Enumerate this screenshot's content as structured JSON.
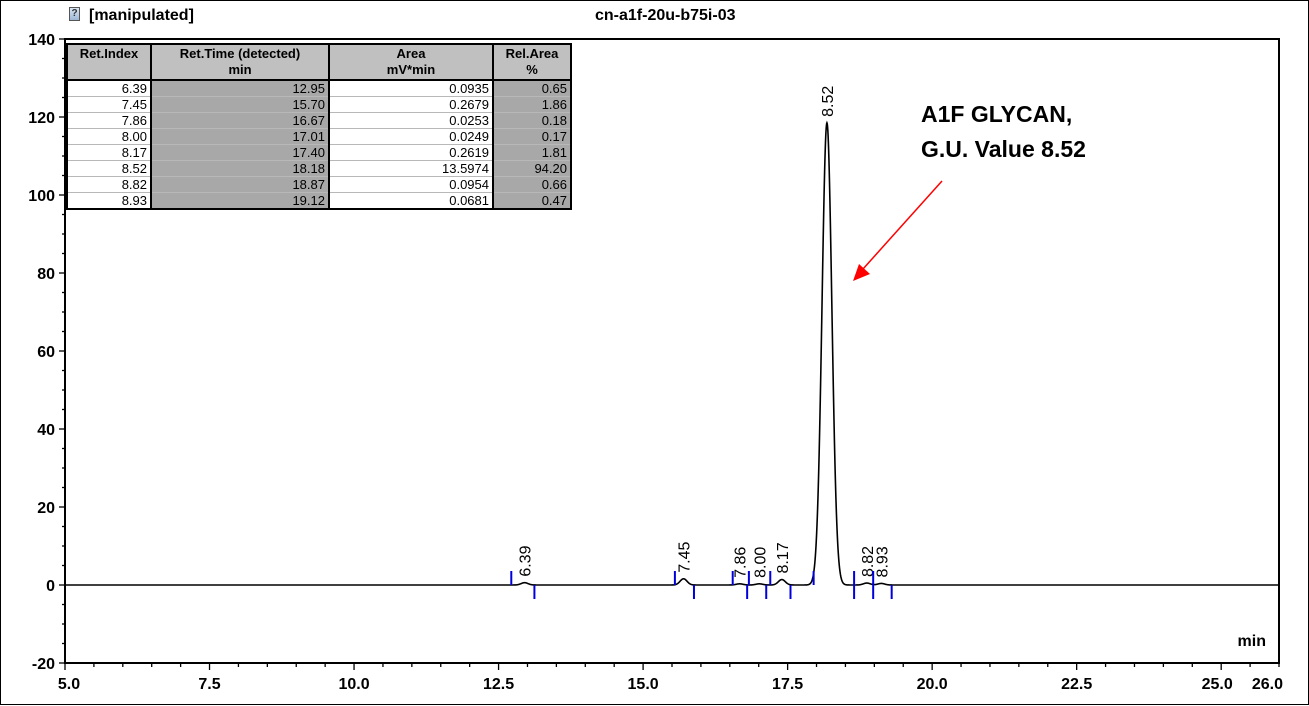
{
  "header": {
    "title": "[manipulated]",
    "sample_name": "cn-a1f-20u-b75i-03",
    "icon": "document-icon"
  },
  "annotation": {
    "line1": "A1F GLYCAN,",
    "line2": "G.U. Value 8.52",
    "arrow_color": "#ff0000"
  },
  "table": {
    "columns": [
      {
        "label": "Ret.Index",
        "unit": ""
      },
      {
        "label": "Ret.Time (detected)",
        "unit": "min"
      },
      {
        "label": "Area",
        "unit": "mV*min"
      },
      {
        "label": "Rel.Area",
        "unit": "%"
      }
    ],
    "rows": [
      [
        "6.39",
        "12.95",
        "0.0935",
        "0.65"
      ],
      [
        "7.45",
        "15.70",
        "0.2679",
        "1.86"
      ],
      [
        "7.86",
        "16.67",
        "0.0253",
        "0.18"
      ],
      [
        "8.00",
        "17.01",
        "0.0249",
        "0.17"
      ],
      [
        "8.17",
        "17.40",
        "0.2619",
        "1.81"
      ],
      [
        "8.52",
        "18.18",
        "13.5974",
        "94.20"
      ],
      [
        "8.82",
        "18.87",
        "0.0954",
        "0.66"
      ],
      [
        "8.93",
        "19.12",
        "0.0681",
        "0.47"
      ]
    ]
  },
  "chart_data": {
    "type": "line",
    "title": "cn-a1f-20u-b75i-03",
    "xlabel": "min",
    "ylabel": "",
    "xlim": [
      5.0,
      26.0
    ],
    "ylim": [
      -20,
      140
    ],
    "xticks": [
      "5.0",
      "7.5",
      "10.0",
      "12.5",
      "15.0",
      "17.5",
      "20.0",
      "22.5",
      "25.0",
      "26.0"
    ],
    "xtick_values": [
      5.0,
      7.5,
      10.0,
      12.5,
      15.0,
      17.5,
      20.0,
      22.5,
      25.0,
      26.0
    ],
    "yticks": [
      "-20",
      "0",
      "20",
      "40",
      "60",
      "80",
      "100",
      "120",
      "140"
    ],
    "ytick_values": [
      -20,
      0,
      20,
      40,
      60,
      80,
      100,
      120,
      140
    ],
    "line_color": "#000000",
    "marker_color": "#0000dd",
    "peaks": [
      {
        "label": "6.39",
        "rt": 12.95,
        "height": 0.6,
        "start": 12.72,
        "end": 13.12
      },
      {
        "label": "7.45",
        "rt": 15.7,
        "height": 1.6,
        "start": 15.55,
        "end": 15.88
      },
      {
        "label": "7.86",
        "rt": 16.67,
        "height": 0.3,
        "start": 16.55,
        "end": 16.8
      },
      {
        "label": "8.00",
        "rt": 17.01,
        "height": 0.3,
        "start": 16.83,
        "end": 17.13
      },
      {
        "label": "8.17",
        "rt": 17.4,
        "height": 1.4,
        "start": 17.2,
        "end": 17.55
      },
      {
        "label": "8.52",
        "rt": 18.18,
        "height": 118.5,
        "start": 17.95,
        "end": 18.65
      },
      {
        "label": "8.82",
        "rt": 18.87,
        "height": 0.5,
        "start": 18.65,
        "end": 18.98
      },
      {
        "label": "8.93",
        "rt": 19.12,
        "height": 0.4,
        "start": 18.98,
        "end": 19.3
      }
    ]
  }
}
